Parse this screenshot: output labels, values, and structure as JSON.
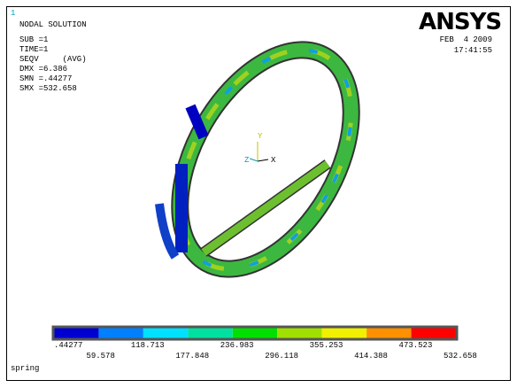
{
  "window_number": "1",
  "header": [
    "NODAL SOLUTION",
    "SUB =1",
    "TIME=1",
    "SEQV     (AVG)",
    "DMX =6.386",
    "SMN =.44277",
    "SMX =532.658"
  ],
  "logo": "ANSYS",
  "date": "FEB  4 2009",
  "time": "17:41:55",
  "triad": {
    "y": "Y",
    "z": "Z",
    "x": "X"
  },
  "legend": {
    "labels": [
      ".44277",
      "59.578",
      "118.713",
      "177.848",
      "236.983",
      "296.118",
      "355.253",
      "414.388",
      "473.523",
      "532.658"
    ],
    "colors": [
      "#0000d0",
      "#0080ff",
      "#00e0ff",
      "#00e0a0",
      "#00e000",
      "#a0e000",
      "#f0f000",
      "#ff9000",
      "#ff0000"
    ]
  },
  "footer": "spring"
}
